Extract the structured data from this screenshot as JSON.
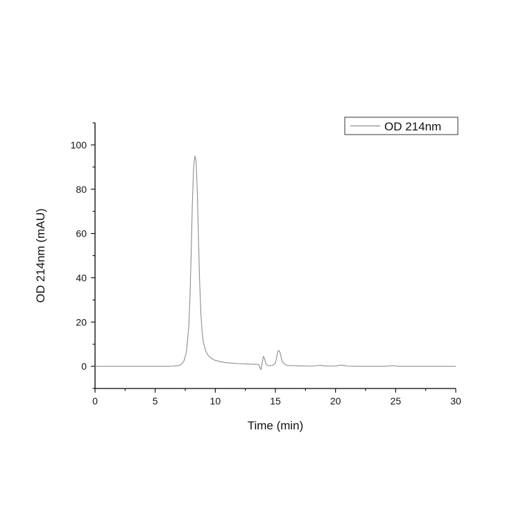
{
  "chart_data": {
    "type": "line",
    "title": "",
    "xlabel": "Time (min)",
    "ylabel": "OD 214nm (mAU)",
    "xlim": [
      0,
      30
    ],
    "ylim": [
      -10,
      110
    ],
    "xticks": [
      0,
      5,
      10,
      15,
      20,
      25,
      30
    ],
    "yticks": [
      0,
      20,
      40,
      60,
      80,
      100
    ],
    "xtick_labels": [
      "0",
      "5",
      "10",
      "15",
      "20",
      "25",
      "30"
    ],
    "ytick_labels": [
      "0",
      "20",
      "40",
      "60",
      "80",
      "100"
    ],
    "grid": false,
    "legend": {
      "position": "top-right",
      "entries": [
        "OD 214nm"
      ]
    },
    "colors": {
      "series": "#8c8c8c",
      "axis": "#000000"
    },
    "series": [
      {
        "name": "OD 214nm",
        "x": [
          0,
          2,
          4,
          5,
          6,
          6.5,
          7,
          7.2,
          7.4,
          7.6,
          7.8,
          7.9,
          8.0,
          8.1,
          8.2,
          8.3,
          8.4,
          8.5,
          8.6,
          8.7,
          8.8,
          8.9,
          9.0,
          9.2,
          9.4,
          9.6,
          9.8,
          10.0,
          10.5,
          11.0,
          12.0,
          13.0,
          13.6,
          13.8,
          13.9,
          14.0,
          14.1,
          14.2,
          14.3,
          14.5,
          14.8,
          15.0,
          15.1,
          15.2,
          15.3,
          15.4,
          15.5,
          15.6,
          15.8,
          16.0,
          16.5,
          17.0,
          18.0,
          18.8,
          19.0,
          20.0,
          20.5,
          21.0,
          22.0,
          24.0,
          24.8,
          25.2,
          26.0,
          28.0,
          30.0
        ],
        "y": [
          0,
          0,
          0,
          0,
          0,
          0.1,
          0.4,
          1.0,
          2.5,
          6.5,
          18.0,
          32.0,
          52.0,
          75.0,
          90.0,
          95.0,
          93.0,
          80.0,
          58.0,
          38.0,
          24.0,
          16.0,
          11.0,
          7.0,
          5.0,
          4.0,
          3.2,
          2.7,
          2.0,
          1.6,
          1.2,
          1.0,
          0.9,
          -1.5,
          1.5,
          4.5,
          3.5,
          1.2,
          0.5,
          0.3,
          0.5,
          1.5,
          4.0,
          6.8,
          7.2,
          6.0,
          3.5,
          1.8,
          0.8,
          0.4,
          0.3,
          0.2,
          0.1,
          0.5,
          0.2,
          0.1,
          0.6,
          0.1,
          0,
          0,
          0.3,
          0,
          0,
          0,
          0
        ]
      }
    ]
  }
}
